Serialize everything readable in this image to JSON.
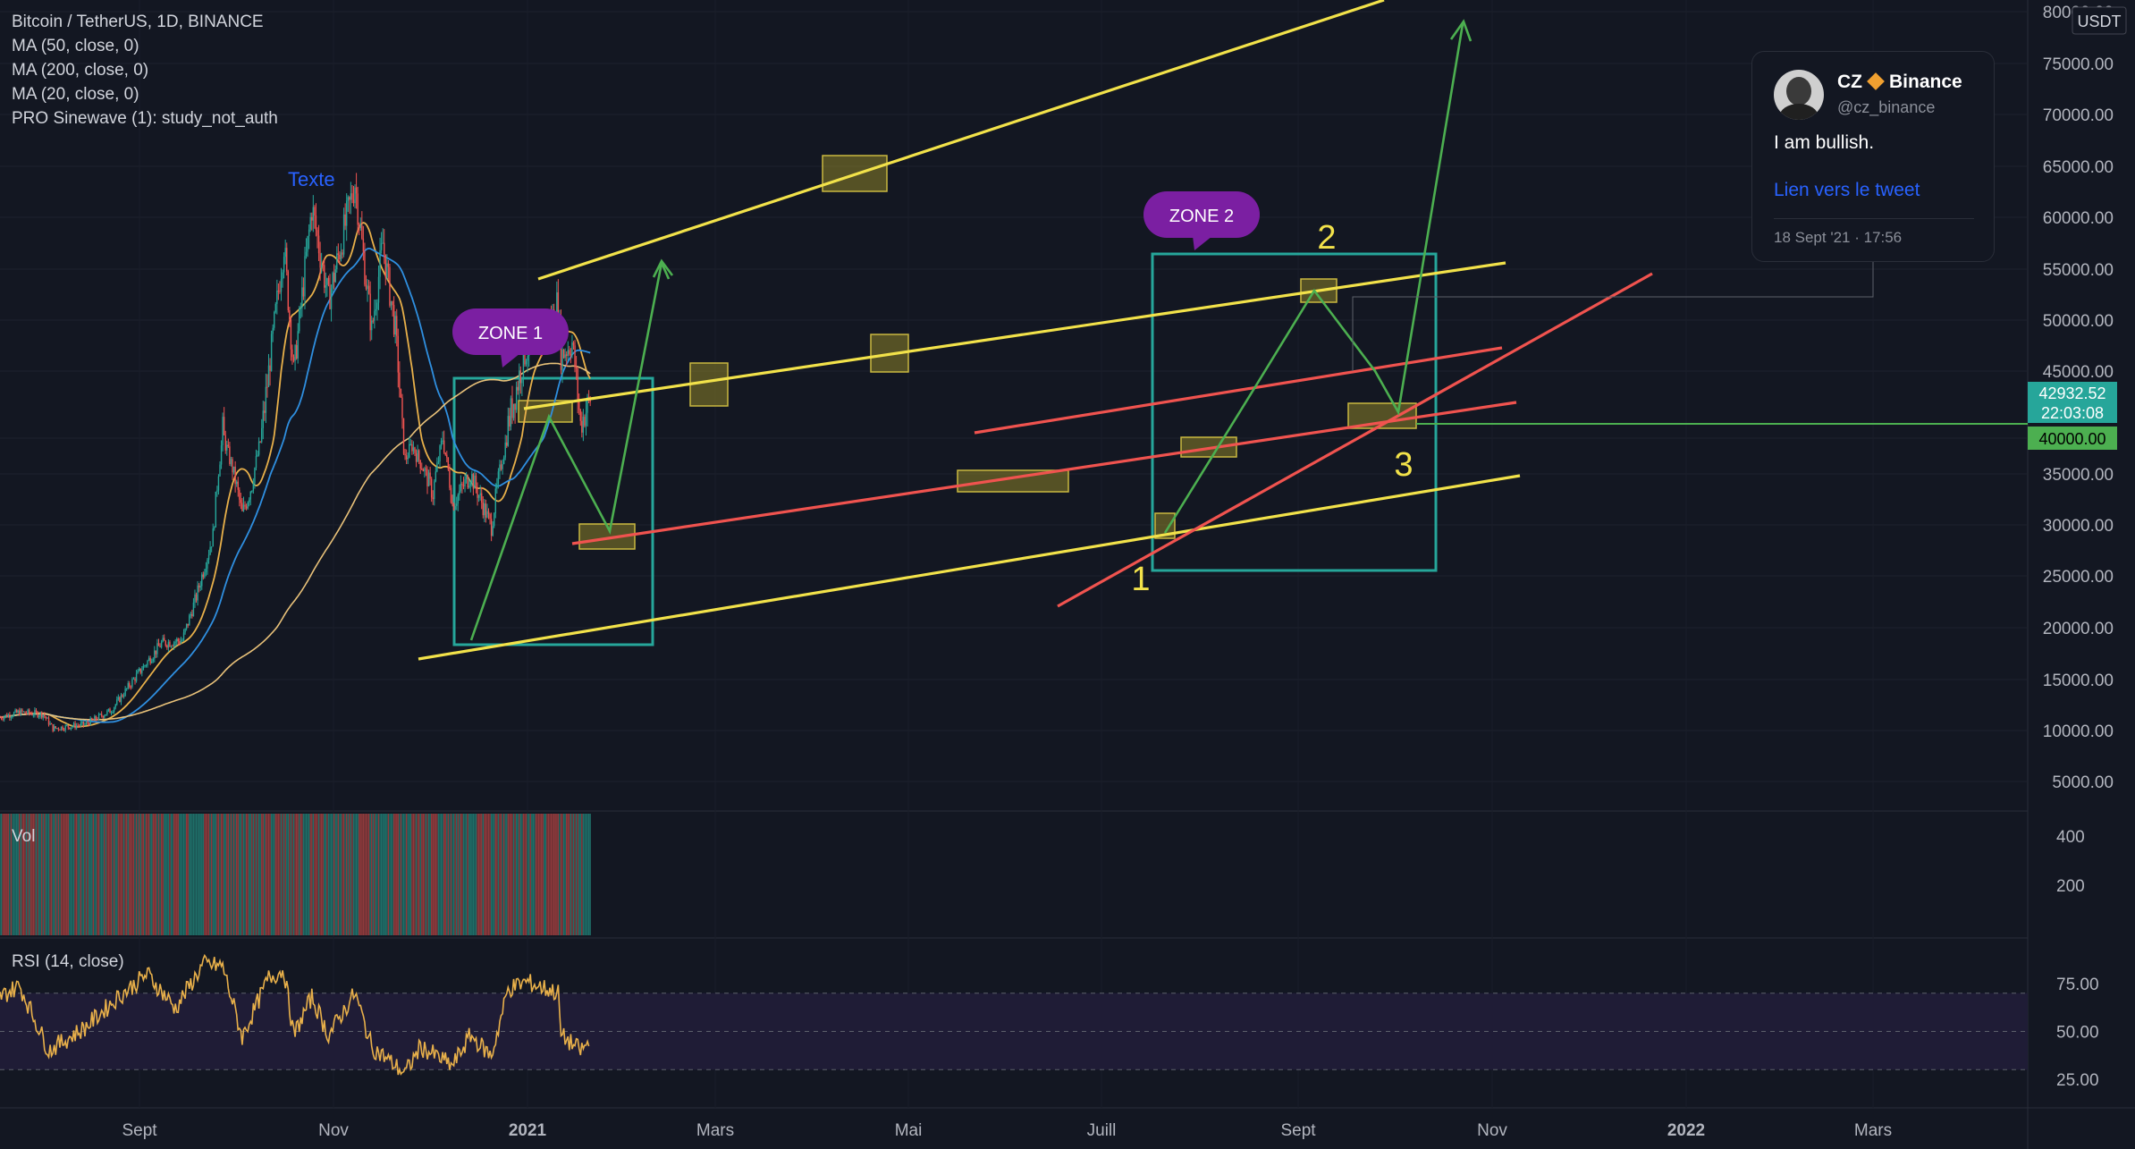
{
  "legend": {
    "symbol": "Bitcoin / TetherUS, 1D, BINANCE",
    "ma50": "MA (50, close, 0)",
    "ma200": "MA (200, close, 0)",
    "ma20": "MA (20, close, 0)",
    "sinewave": "PRO Sinewave (1): study_not_auth"
  },
  "annotation_text": "Texte",
  "tweet": {
    "name": "CZ",
    "org": "Binance",
    "handle": "@cz_binance",
    "message": "I am bullish.",
    "link": "Lien vers le tweet",
    "date": "18 Sept '21 · 17:56"
  },
  "chart_data": {
    "type": "candlestick",
    "quote_label": "USDT",
    "price_ticks": [
      "80000.00",
      "75000.00",
      "70000.00",
      "65000.00",
      "60000.00",
      "55000.00",
      "50000.00",
      "45000.00",
      "40000.00",
      "35000.00",
      "30000.00",
      "25000.00",
      "20000.00",
      "15000.00",
      "10000.00",
      "5000.00"
    ],
    "price_tick_values": [
      80000,
      75000,
      70000,
      65000,
      60000,
      55000,
      50000,
      45000,
      40000,
      35000,
      30000,
      25000,
      20000,
      15000,
      10000,
      5000
    ],
    "x_ticks": [
      "Sept",
      "Nov",
      "2021",
      "Mars",
      "Mai",
      "Juill",
      "Sept",
      "Nov",
      "2022",
      "Mars"
    ],
    "last_price": "42932.52",
    "countdown": "22:03:08",
    "level_label": "40000.00",
    "level_value": 40000,
    "zone_labels": [
      "ZONE 1",
      "ZONE 2"
    ],
    "wave_labels": [
      "1",
      "2",
      "3"
    ],
    "price_path": [
      [
        "2020-08-01",
        11300
      ],
      [
        "2020-08-15",
        11800
      ],
      [
        "2020-09-01",
        11600
      ],
      [
        "2020-09-08",
        10200
      ],
      [
        "2020-10-01",
        10600
      ],
      [
        "2020-10-20",
        12000
      ],
      [
        "2020-11-05",
        15000
      ],
      [
        "2020-11-25",
        18500
      ],
      [
        "2020-12-10",
        18800
      ],
      [
        "2020-12-20",
        23000
      ],
      [
        "2021-01-01",
        29000
      ],
      [
        "2021-01-08",
        40500
      ],
      [
        "2021-01-22",
        31000
      ],
      [
        "2021-01-29",
        34000
      ],
      [
        "2021-02-10",
        45000
      ],
      [
        "2021-02-21",
        57500
      ],
      [
        "2021-02-28",
        45000
      ],
      [
        "2021-03-13",
        61000
      ],
      [
        "2021-03-25",
        52000
      ],
      [
        "2021-04-13",
        63500
      ],
      [
        "2021-04-25",
        49000
      ],
      [
        "2021-05-03",
        57500
      ],
      [
        "2021-05-12",
        49000
      ],
      [
        "2021-05-19",
        37000
      ],
      [
        "2021-05-24",
        39000
      ],
      [
        "2021-06-08",
        33000
      ],
      [
        "2021-06-15",
        40000
      ],
      [
        "2021-06-22",
        32000
      ],
      [
        "2021-07-05",
        35000
      ],
      [
        "2021-07-20",
        29800
      ],
      [
        "2021-08-01",
        41000
      ],
      [
        "2021-08-14",
        47000
      ],
      [
        "2021-08-28",
        48500
      ],
      [
        "2021-09-06",
        52000
      ],
      [
        "2021-09-08",
        46500
      ],
      [
        "2021-09-16",
        47800
      ],
      [
        "2021-09-22",
        41000
      ],
      [
        "2021-09-29",
        42900
      ]
    ],
    "volume_axis_ticks": [
      "400",
      "200"
    ],
    "volume_label": "Vol",
    "rsi": {
      "label": "RSI (14, close)",
      "ticks": [
        "75.00",
        "50.00",
        "25.00"
      ],
      "tick_values": [
        75,
        50,
        25
      ],
      "band": [
        30,
        70
      ],
      "path": [
        [
          "2020-08-01",
          68
        ],
        [
          "2020-08-15",
          74
        ],
        [
          "2020-09-05",
          40
        ],
        [
          "2020-10-01",
          52
        ],
        [
          "2020-10-25",
          68
        ],
        [
          "2020-11-15",
          80
        ],
        [
          "2020-12-05",
          62
        ],
        [
          "2020-12-25",
          85
        ],
        [
          "2021-01-08",
          84
        ],
        [
          "2021-01-22",
          47
        ],
        [
          "2021-02-10",
          78
        ],
        [
          "2021-02-21",
          82
        ],
        [
          "2021-02-28",
          48
        ],
        [
          "2021-03-13",
          68
        ],
        [
          "2021-03-25",
          48
        ],
        [
          "2021-04-13",
          70
        ],
        [
          "2021-04-25",
          42
        ],
        [
          "2021-05-19",
          28
        ],
        [
          "2021-05-30",
          42
        ],
        [
          "2021-06-22",
          32
        ],
        [
          "2021-07-05",
          48
        ],
        [
          "2021-07-20",
          37
        ],
        [
          "2021-08-01",
          72
        ],
        [
          "2021-08-14",
          76
        ],
        [
          "2021-09-06",
          70
        ],
        [
          "2021-09-08",
          48
        ],
        [
          "2021-09-22",
          40
        ],
        [
          "2021-09-29",
          44
        ]
      ]
    }
  }
}
